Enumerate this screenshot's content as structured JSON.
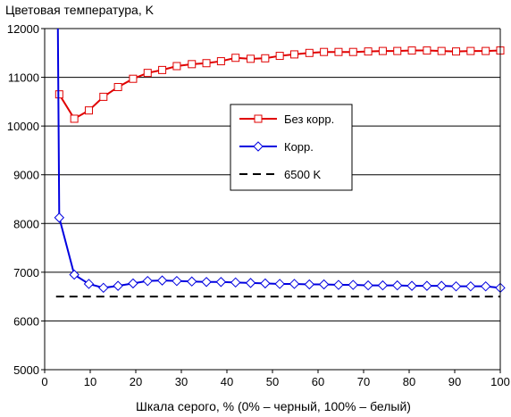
{
  "chart_data": {
    "type": "line",
    "ylabel": "Цветовая температура, K",
    "xlabel": "Шкала серого, % (0% – черный, 100% – белый)",
    "xlim": [
      0,
      100
    ],
    "ylim": [
      5000,
      12000
    ],
    "xticks": [
      0,
      10,
      20,
      30,
      40,
      50,
      60,
      70,
      80,
      90,
      100
    ],
    "yticks": [
      5000,
      6000,
      7000,
      8000,
      9000,
      10000,
      11000,
      12000
    ],
    "grid": "horizontal",
    "legend_position": "center-right",
    "series": [
      {
        "name": "Без корр.",
        "color": "#e00000",
        "marker": "square",
        "x": [
          3.2,
          6.5,
          9.7,
          12.9,
          16.1,
          19.4,
          22.6,
          25.8,
          29.0,
          32.3,
          35.5,
          38.7,
          41.9,
          45.2,
          48.4,
          51.6,
          54.8,
          58.1,
          61.3,
          64.5,
          67.7,
          71.0,
          74.2,
          77.4,
          80.6,
          83.9,
          87.1,
          90.3,
          93.5,
          96.8,
          100.0
        ],
        "y": [
          10650,
          10150,
          10320,
          10600,
          10800,
          10970,
          11090,
          11150,
          11230,
          11270,
          11290,
          11330,
          11400,
          11380,
          11390,
          11440,
          11470,
          11500,
          11520,
          11520,
          11520,
          11530,
          11540,
          11540,
          11550,
          11550,
          11540,
          11530,
          11540,
          11540,
          11550
        ]
      },
      {
        "name": "Корр.",
        "color": "#0000e0",
        "marker": "diamond",
        "x": [
          2.9,
          3.2,
          6.5,
          9.7,
          12.9,
          16.1,
          19.4,
          22.6,
          25.8,
          29.0,
          32.3,
          35.5,
          38.7,
          41.9,
          45.2,
          48.4,
          51.6,
          54.8,
          58.1,
          61.3,
          64.5,
          67.7,
          71.0,
          74.2,
          77.4,
          80.6,
          83.9,
          87.1,
          90.3,
          93.5,
          96.8,
          100.0
        ],
        "y": [
          12000,
          8120,
          6950,
          6760,
          6680,
          6720,
          6770,
          6820,
          6830,
          6820,
          6810,
          6800,
          6800,
          6790,
          6780,
          6770,
          6760,
          6760,
          6750,
          6750,
          6740,
          6740,
          6730,
          6730,
          6730,
          6720,
          6720,
          6720,
          6710,
          6710,
          6710,
          6680
        ]
      },
      {
        "name": "6500 K",
        "color": "#000000",
        "style": "dashed",
        "x": [
          2.5,
          100
        ],
        "y": [
          6500,
          6500
        ]
      }
    ]
  }
}
